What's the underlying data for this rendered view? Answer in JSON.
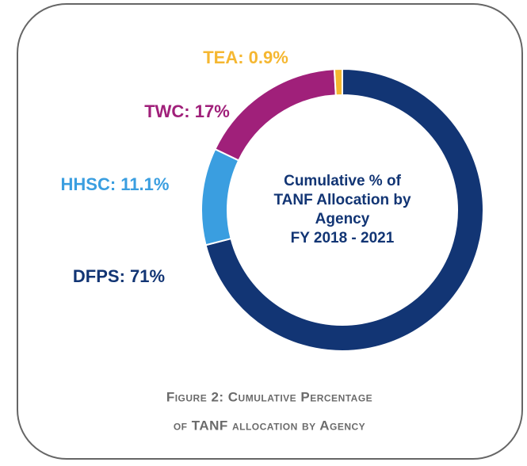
{
  "chart_data": {
    "type": "donut",
    "title": [
      "Cumulative % of",
      "TANF Allocation by",
      "Agency",
      "FY 2018 - 2021"
    ],
    "caption": [
      "Figure 2: Cumulative Percentage",
      "of TANF allocation by Agency"
    ],
    "values": [
      71,
      11.1,
      17,
      0.9
    ],
    "value_labels": [
      "DFPS: 71%",
      "HHSC: 11.1%",
      "TWC: 17%",
      "TEA: 0.9%"
    ],
    "colors": [
      "#123574",
      "#3a9ee0",
      "#a0207a",
      "#f5b731"
    ]
  }
}
